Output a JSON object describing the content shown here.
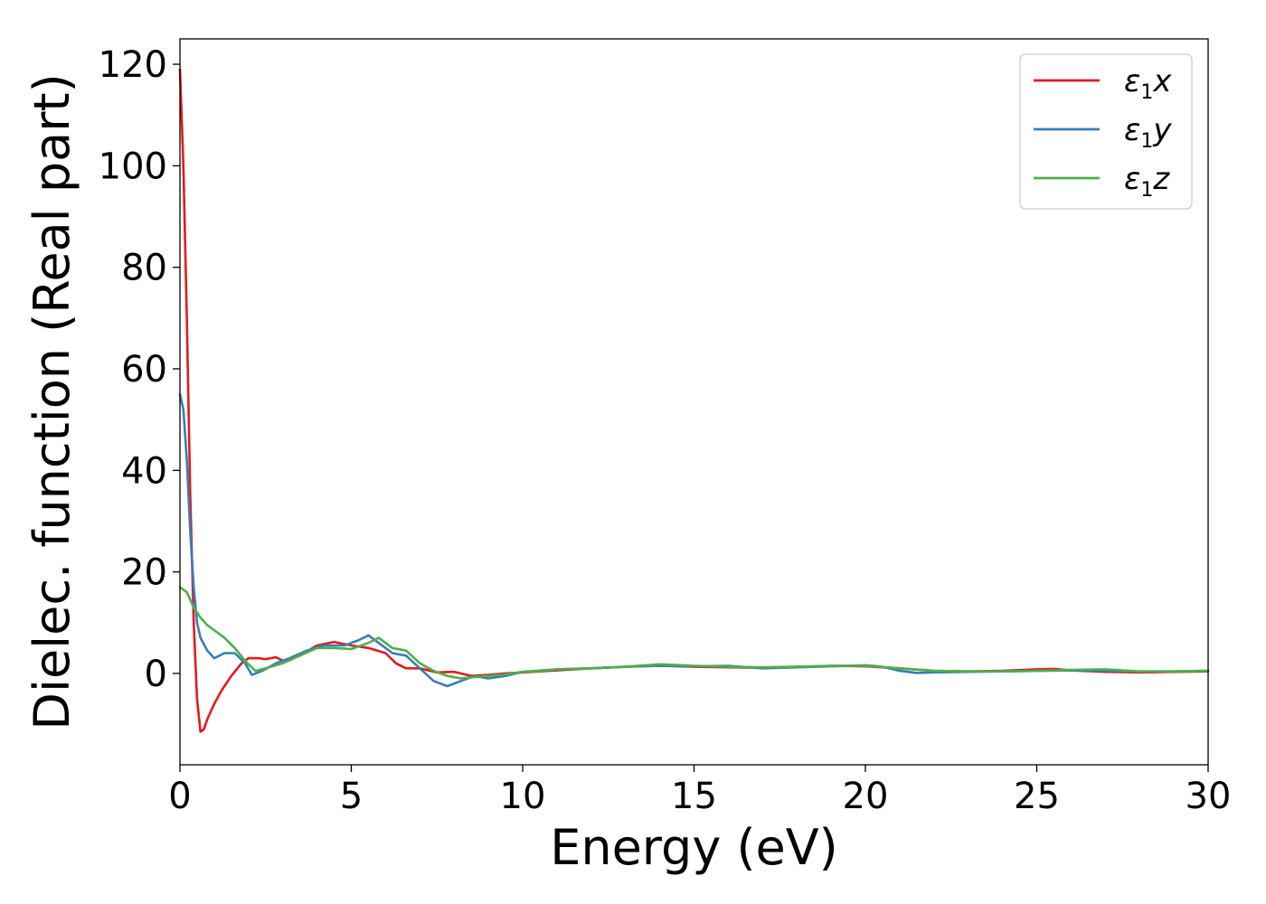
{
  "chart_data": {
    "type": "line",
    "title": "",
    "xlabel": "Energy (eV)",
    "ylabel": "Dielec. function (Real part)",
    "xlim": [
      0,
      30
    ],
    "ylim": [
      -18,
      125
    ],
    "xticks": [
      0,
      5,
      10,
      15,
      20,
      25,
      30
    ],
    "yticks": [
      0,
      20,
      40,
      60,
      80,
      100,
      120
    ],
    "grid": false,
    "legend_position": "top-right",
    "series": [
      {
        "name": "ε1x",
        "legend": {
          "sym": "ε",
          "sub": "1",
          "var": "x"
        },
        "color": "#e41a1c",
        "points": [
          [
            0,
            119
          ],
          [
            0.1,
            100
          ],
          [
            0.2,
            70
          ],
          [
            0.3,
            35
          ],
          [
            0.4,
            10
          ],
          [
            0.5,
            -5
          ],
          [
            0.6,
            -11.5
          ],
          [
            0.7,
            -11
          ],
          [
            0.8,
            -9
          ],
          [
            1.0,
            -6
          ],
          [
            1.2,
            -3.5
          ],
          [
            1.5,
            -0.5
          ],
          [
            1.8,
            2
          ],
          [
            2.0,
            3
          ],
          [
            2.3,
            3
          ],
          [
            2.5,
            2.8
          ],
          [
            2.8,
            3.2
          ],
          [
            3.0,
            2.5
          ],
          [
            3.5,
            3.5
          ],
          [
            4.0,
            5.5
          ],
          [
            4.5,
            6.2
          ],
          [
            5.0,
            5.5
          ],
          [
            5.5,
            5
          ],
          [
            6.0,
            4
          ],
          [
            6.3,
            2
          ],
          [
            6.6,
            1
          ],
          [
            7.0,
            1
          ],
          [
            7.5,
            0.2
          ],
          [
            8.0,
            0.3
          ],
          [
            8.5,
            -0.5
          ],
          [
            9.0,
            -0.3
          ],
          [
            9.5,
            0
          ],
          [
            10,
            0.2
          ],
          [
            11,
            0.6
          ],
          [
            12,
            1
          ],
          [
            13,
            1.3
          ],
          [
            14,
            1.5
          ],
          [
            15,
            1.3
          ],
          [
            16,
            1.2
          ],
          [
            17,
            1.1
          ],
          [
            18,
            1.3
          ],
          [
            19,
            1.5
          ],
          [
            20,
            1.4
          ],
          [
            21,
            1
          ],
          [
            22,
            0.5
          ],
          [
            23,
            0.4
          ],
          [
            24,
            0.5
          ],
          [
            25,
            0.8
          ],
          [
            25.5,
            0.9
          ],
          [
            26,
            0.6
          ],
          [
            27,
            0.3
          ],
          [
            28,
            0.2
          ],
          [
            29,
            0.3
          ],
          [
            30,
            0.4
          ]
        ]
      },
      {
        "name": "ε1y",
        "legend": {
          "sym": "ε",
          "sub": "1",
          "var": "y"
        },
        "color": "#377eb8",
        "points": [
          [
            0,
            55
          ],
          [
            0.1,
            52
          ],
          [
            0.2,
            42
          ],
          [
            0.3,
            28
          ],
          [
            0.4,
            17
          ],
          [
            0.5,
            10
          ],
          [
            0.6,
            7
          ],
          [
            0.8,
            4.5
          ],
          [
            1.0,
            3
          ],
          [
            1.3,
            4
          ],
          [
            1.6,
            4
          ],
          [
            1.9,
            2
          ],
          [
            2.1,
            -0.3
          ],
          [
            2.4,
            0.5
          ],
          [
            2.8,
            2
          ],
          [
            3.2,
            3
          ],
          [
            3.7,
            4.5
          ],
          [
            4.2,
            5.5
          ],
          [
            4.8,
            5.5
          ],
          [
            5.2,
            6.5
          ],
          [
            5.5,
            7.5
          ],
          [
            5.8,
            6
          ],
          [
            6.2,
            4
          ],
          [
            6.6,
            3.5
          ],
          [
            7.0,
            1
          ],
          [
            7.4,
            -1.5
          ],
          [
            7.8,
            -2.5
          ],
          [
            8.2,
            -1.5
          ],
          [
            8.6,
            -0.5
          ],
          [
            9.0,
            -1
          ],
          [
            9.5,
            -0.5
          ],
          [
            10,
            0.3
          ],
          [
            11,
            0.8
          ],
          [
            12,
            1
          ],
          [
            13,
            1.3
          ],
          [
            14,
            1.5
          ],
          [
            15,
            1.4
          ],
          [
            16,
            1.5
          ],
          [
            17,
            1
          ],
          [
            18,
            1.2
          ],
          [
            19,
            1.4
          ],
          [
            20,
            1.6
          ],
          [
            20.5,
            1.3
          ],
          [
            21,
            0.5
          ],
          [
            21.5,
            0.1
          ],
          [
            22,
            0.2
          ],
          [
            23,
            0.3
          ],
          [
            24,
            0.4
          ],
          [
            25,
            0.5
          ],
          [
            26,
            0.6
          ],
          [
            27,
            0.5
          ],
          [
            28,
            0.4
          ],
          [
            29,
            0.4
          ],
          [
            30,
            0.5
          ]
        ]
      },
      {
        "name": "ε1z",
        "legend": {
          "sym": "ε",
          "sub": "1",
          "var": "z"
        },
        "color": "#4daf4a",
        "points": [
          [
            0,
            17
          ],
          [
            0.2,
            16
          ],
          [
            0.4,
            13
          ],
          [
            0.6,
            11
          ],
          [
            0.8,
            9.5
          ],
          [
            1.0,
            8.5
          ],
          [
            1.3,
            7
          ],
          [
            1.6,
            5
          ],
          [
            1.9,
            2.5
          ],
          [
            2.2,
            0.5
          ],
          [
            2.5,
            1
          ],
          [
            3.0,
            2
          ],
          [
            3.5,
            3.5
          ],
          [
            4.0,
            5
          ],
          [
            4.5,
            5
          ],
          [
            5.0,
            4.8
          ],
          [
            5.5,
            6
          ],
          [
            5.8,
            7
          ],
          [
            6.2,
            5
          ],
          [
            6.6,
            4.5
          ],
          [
            7.0,
            2
          ],
          [
            7.4,
            0.5
          ],
          [
            7.8,
            -0.5
          ],
          [
            8.2,
            -1
          ],
          [
            8.6,
            -0.7
          ],
          [
            9.0,
            -0.5
          ],
          [
            9.5,
            -0.2
          ],
          [
            10,
            0.3
          ],
          [
            10.5,
            0.5
          ],
          [
            11,
            0.8
          ],
          [
            12,
            1
          ],
          [
            13,
            1.3
          ],
          [
            14,
            1.8
          ],
          [
            15,
            1.5
          ],
          [
            16,
            1.3
          ],
          [
            17,
            1.2
          ],
          [
            18,
            1.3
          ],
          [
            19,
            1.5
          ],
          [
            20,
            1.5
          ],
          [
            21,
            1
          ],
          [
            22,
            0.5
          ],
          [
            23,
            0.4
          ],
          [
            24,
            0.4
          ],
          [
            25,
            0.5
          ],
          [
            26,
            0.7
          ],
          [
            27,
            0.8
          ],
          [
            28,
            0.4
          ],
          [
            29,
            0.4
          ],
          [
            30,
            0.5
          ]
        ]
      }
    ]
  }
}
